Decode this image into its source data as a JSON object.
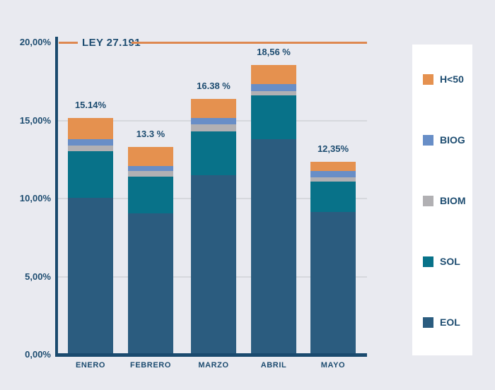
{
  "colors": {
    "background": "#e9eaf0",
    "axis": "#1a4a6e",
    "text": "#1d4c70",
    "gridline": "#d6d8dd",
    "reference_line": "#de8850",
    "legend_background": "#ffffff"
  },
  "chart_data": {
    "type": "bar",
    "stacked": true,
    "grid": true,
    "reference_line": {
      "label": "LEY 27.191",
      "value": 20.0,
      "color": "#de8850"
    },
    "categories": [
      "ENERO",
      "FEBRERO",
      "MARZO",
      "ABRIL",
      "MAYO"
    ],
    "totals": [
      15.14,
      13.3,
      16.38,
      18.56,
      12.35
    ],
    "total_labels": [
      "15.14%",
      "13.3 %",
      "16.38 %",
      "18,56 %",
      "12,35%"
    ],
    "series": [
      {
        "name": "EOL",
        "color": "#2b5c7f",
        "values": [
          10.05,
          9.05,
          11.5,
          13.8,
          9.15
        ]
      },
      {
        "name": "SOL",
        "color": "#087289",
        "values": [
          2.97,
          2.37,
          2.8,
          2.8,
          1.92
        ]
      },
      {
        "name": "BIOM",
        "color": "#b1b0b3",
        "values": [
          0.38,
          0.33,
          0.46,
          0.26,
          0.3
        ]
      },
      {
        "name": "BIOG",
        "color": "#688ec7",
        "values": [
          0.38,
          0.35,
          0.38,
          0.48,
          0.38
        ]
      },
      {
        "name": "H<50",
        "color": "#e5914f",
        "values": [
          1.36,
          1.2,
          1.24,
          1.22,
          0.6
        ]
      }
    ],
    "y_axis": {
      "tick_labels": [
        "0,00%",
        "5,00%",
        "10,00%",
        "15,00%",
        "20,00%"
      ],
      "tick_values": [
        0,
        5,
        10,
        15,
        20
      ],
      "min": 0,
      "max": 20
    },
    "legend": {
      "position": "right",
      "items_top_to_bottom": [
        "H<50",
        "BIOG",
        "BIOM",
        "SOL",
        "EOL"
      ]
    }
  }
}
